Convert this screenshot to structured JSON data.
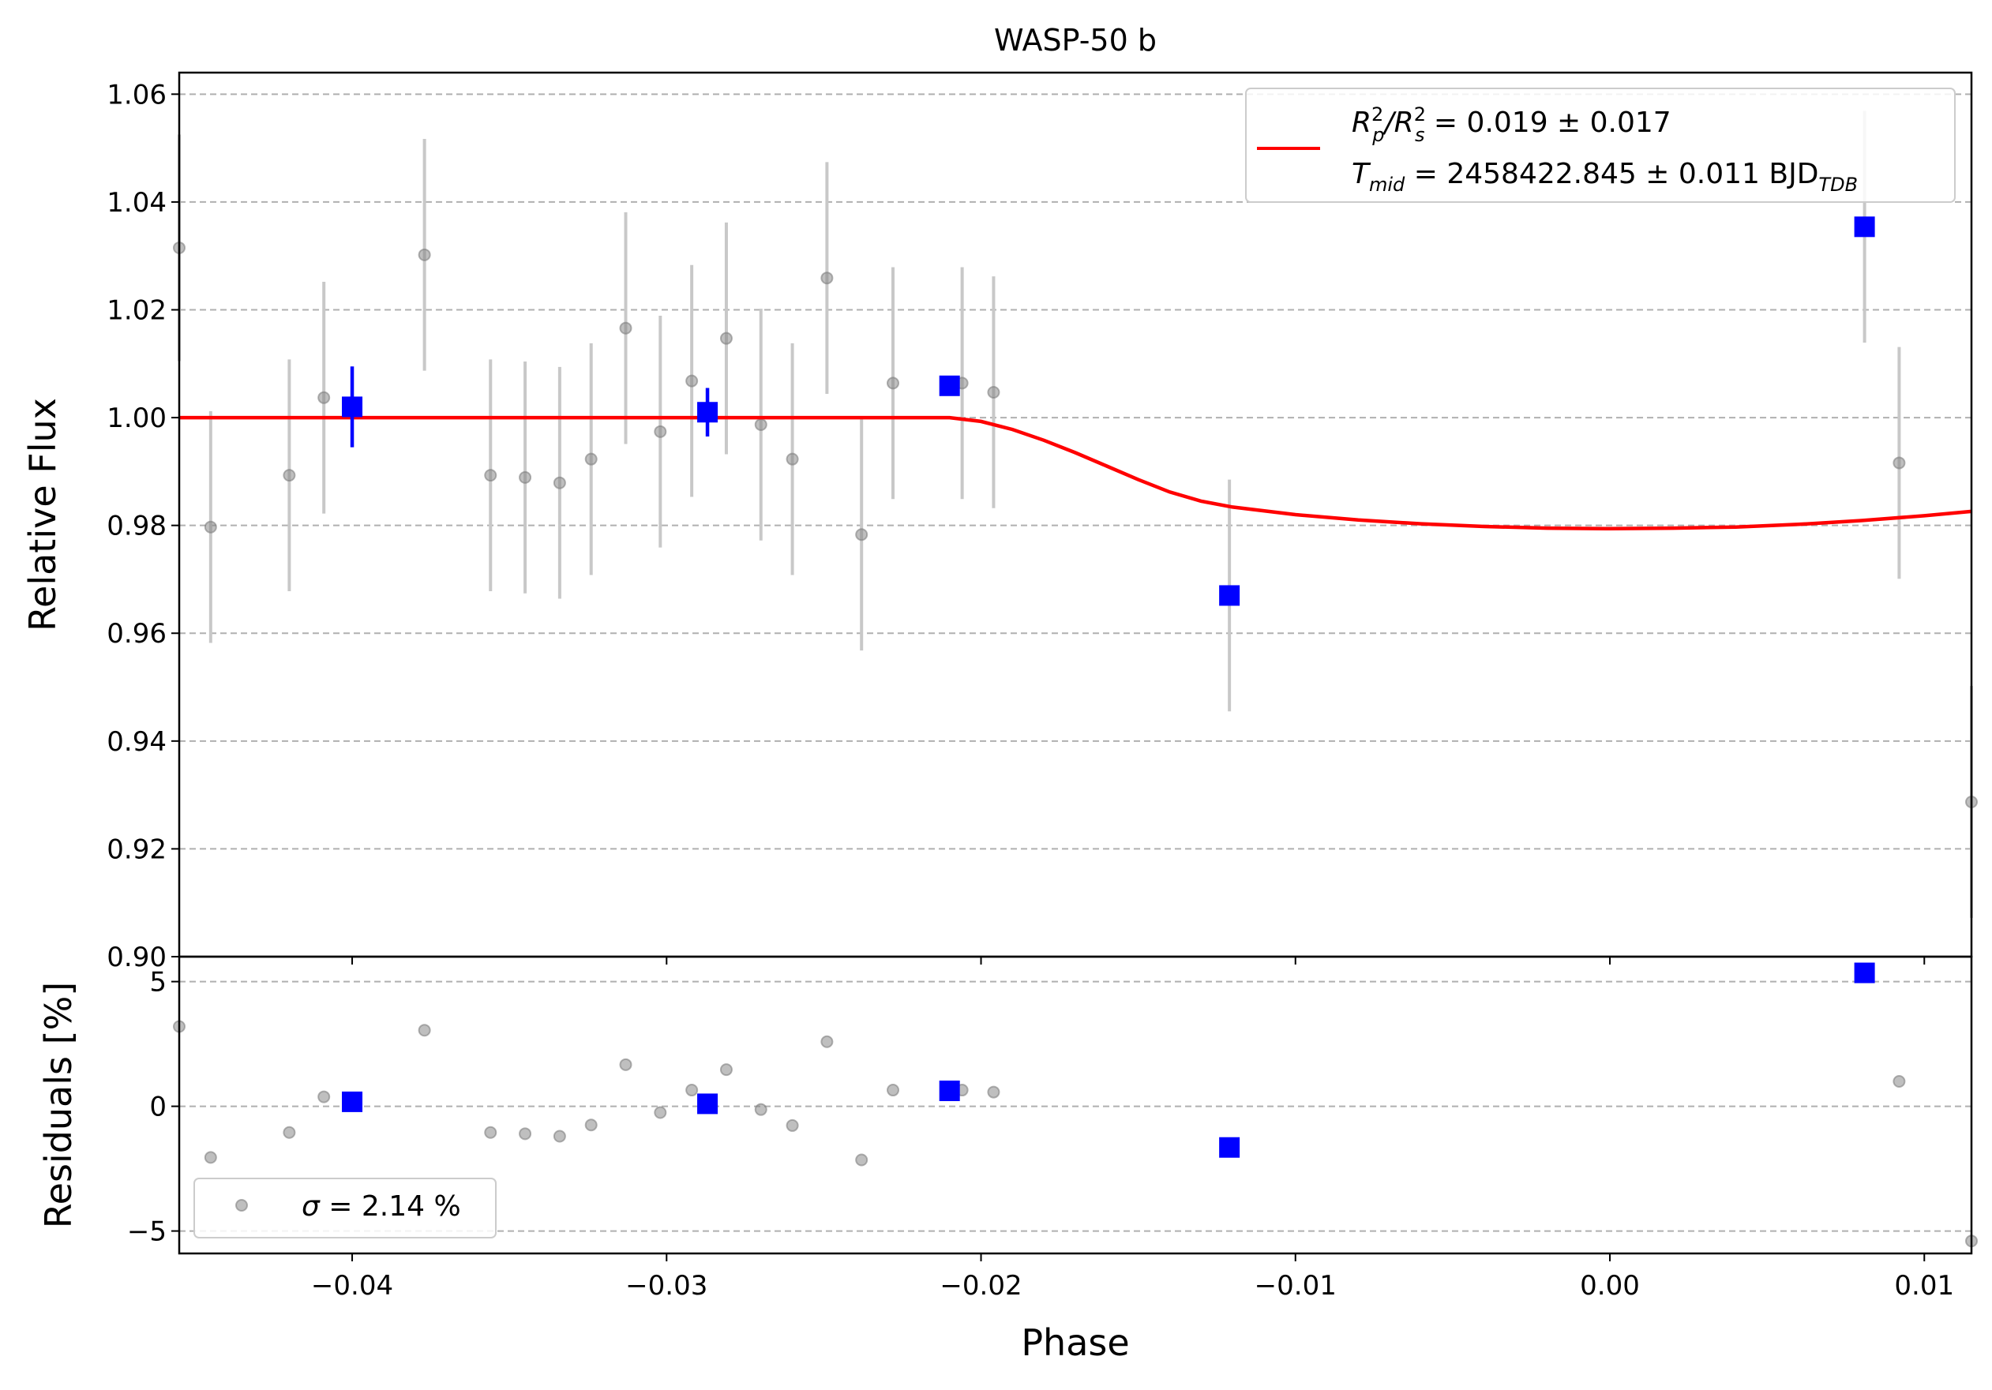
{
  "chart_data": [
    {
      "type": "scatter",
      "panel": "main",
      "title": "WASP-50 b",
      "xlabel": "",
      "ylabel": "Relative Flux",
      "xlim": [
        -0.0455,
        0.0115
      ],
      "ylim": [
        0.9,
        1.064
      ],
      "xticks": [
        -0.04,
        -0.03,
        -0.02,
        -0.01,
        0.0,
        0.01
      ],
      "yticks": [
        0.9,
        0.92,
        0.94,
        0.96,
        0.98,
        1.0,
        1.02,
        1.04,
        1.06
      ],
      "ytick_labels": [
        "0.90",
        "0.92",
        "0.94",
        "0.96",
        "0.98",
        "1.00",
        "1.02",
        "1.04",
        "1.06"
      ],
      "grid": "horizontal dashed",
      "legend_position": "top-right",
      "legend": {
        "rp_name": "R",
        "rp_sup": "2",
        "rp_sub": "p",
        "rs_name": "/R",
        "rs_sup": "2",
        "rs_sub": "s",
        "rp_value": " = 0.019 ± 0.017",
        "t_name": "T",
        "t_sub": "mid",
        "t_value": " = 2458422.845 ± 0.011 BJD",
        "t_unit_sub": "TDB"
      },
      "colors": {
        "model": "#ff0000",
        "binned": "#0000ff",
        "raw": "#808080",
        "raw_err": "#c8c8c8"
      },
      "series": [
        {
          "kind": "raw",
          "points": [
            [
              -0.0455,
              1.0315,
              0.021
            ],
            [
              -0.0445,
              0.9797,
              0.0215
            ],
            [
              -0.042,
              0.9893,
              0.0215
            ],
            [
              -0.0409,
              1.0037,
              0.0215
            ],
            [
              -0.0377,
              1.0302,
              0.0215
            ],
            [
              -0.0356,
              0.9893,
              0.0215
            ],
            [
              -0.0345,
              0.9889,
              0.0215
            ],
            [
              -0.0334,
              0.9879,
              0.0215
            ],
            [
              -0.0324,
              0.9923,
              0.0215
            ],
            [
              -0.0313,
              1.0166,
              0.0215
            ],
            [
              -0.0302,
              0.9974,
              0.0215
            ],
            [
              -0.0292,
              1.0068,
              0.0215
            ],
            [
              -0.0281,
              1.0147,
              0.0215
            ],
            [
              -0.027,
              0.9987,
              0.0215
            ],
            [
              -0.026,
              0.9923,
              0.0215
            ],
            [
              -0.0249,
              1.0259,
              0.0215
            ],
            [
              -0.0238,
              0.9783,
              0.0215
            ],
            [
              -0.0228,
              1.0064,
              0.0215
            ],
            [
              -0.0206,
              1.0064,
              0.0215
            ],
            [
              -0.0196,
              1.0047,
              0.0215
            ],
            [
              -0.0121,
              0.967,
              0.0215
            ],
            [
              0.0081,
              1.0354,
              0.0215
            ],
            [
              0.0092,
              0.9916,
              0.0215
            ],
            [
              0.0115,
              0.9287,
              0.0215
            ]
          ]
        },
        {
          "kind": "binned",
          "points": [
            [
              -0.04,
              1.002,
              0.0075
            ],
            [
              -0.0287,
              1.001,
              0.0045
            ],
            [
              -0.021,
              1.0059,
              0.0
            ],
            [
              -0.0121,
              0.967,
              0.0
            ],
            [
              0.0081,
              1.0354,
              0.0
            ]
          ]
        },
        {
          "kind": "model",
          "name": "transit model",
          "x": [
            -0.0455,
            -0.021,
            -0.02,
            -0.019,
            -0.018,
            -0.017,
            -0.016,
            -0.015,
            -0.014,
            -0.013,
            -0.012,
            -0.01,
            -0.008,
            -0.006,
            -0.004,
            -0.002,
            0.0,
            0.002,
            0.004,
            0.006,
            0.008,
            0.01,
            0.0115
          ],
          "y": [
            1.0,
            1.0,
            0.9993,
            0.9978,
            0.9958,
            0.9935,
            0.991,
            0.9885,
            0.9862,
            0.9845,
            0.9834,
            0.982,
            0.981,
            0.9803,
            0.9798,
            0.9795,
            0.9794,
            0.9795,
            0.9797,
            0.9802,
            0.9809,
            0.9818,
            0.9826
          ]
        }
      ]
    },
    {
      "type": "scatter",
      "panel": "residuals",
      "xlabel": "Phase",
      "ylabel": "Residuals [%]",
      "xlim": [
        -0.0455,
        0.0115
      ],
      "ylim": [
        -5.9,
        6.0
      ],
      "xticks": [
        -0.04,
        -0.03,
        -0.02,
        -0.01,
        0.0,
        0.01
      ],
      "xtick_labels": [
        "−0.04",
        "−0.03",
        "−0.02",
        "−0.01",
        "0.00",
        "0.01"
      ],
      "yticks": [
        -5,
        0,
        5
      ],
      "ytick_labels": [
        "−5",
        "0",
        "5"
      ],
      "grid": "horizontal dashed",
      "legend_position": "bottom-left",
      "legend": {
        "sigma_symbol": "σ",
        "sigma_text": " = 2.14 %"
      },
      "series": [
        {
          "kind": "raw",
          "points": [
            [
              -0.0455,
              3.2
            ],
            [
              -0.0445,
              -2.05
            ],
            [
              -0.042,
              -1.05
            ],
            [
              -0.0409,
              0.38
            ],
            [
              -0.0377,
              3.05
            ],
            [
              -0.0356,
              -1.05
            ],
            [
              -0.0345,
              -1.1
            ],
            [
              -0.0334,
              -1.2
            ],
            [
              -0.0324,
              -0.75
            ],
            [
              -0.0313,
              1.67
            ],
            [
              -0.0302,
              -0.25
            ],
            [
              -0.0292,
              0.65
            ],
            [
              -0.0281,
              1.47
            ],
            [
              -0.027,
              -0.13
            ],
            [
              -0.026,
              -0.77
            ],
            [
              -0.0249,
              2.59
            ],
            [
              -0.0238,
              -2.15
            ],
            [
              -0.0228,
              0.65
            ],
            [
              -0.0206,
              0.65
            ],
            [
              -0.0196,
              0.57
            ],
            [
              -0.0121,
              -1.65
            ],
            [
              0.0081,
              5.35
            ],
            [
              0.0092,
              1.0
            ],
            [
              0.0115,
              -5.4
            ]
          ]
        },
        {
          "kind": "binned",
          "points": [
            [
              -0.04,
              0.18
            ],
            [
              -0.0287,
              0.1
            ],
            [
              -0.021,
              0.62
            ],
            [
              -0.0121,
              -1.65
            ],
            [
              0.0081,
              5.35
            ]
          ]
        }
      ]
    }
  ]
}
